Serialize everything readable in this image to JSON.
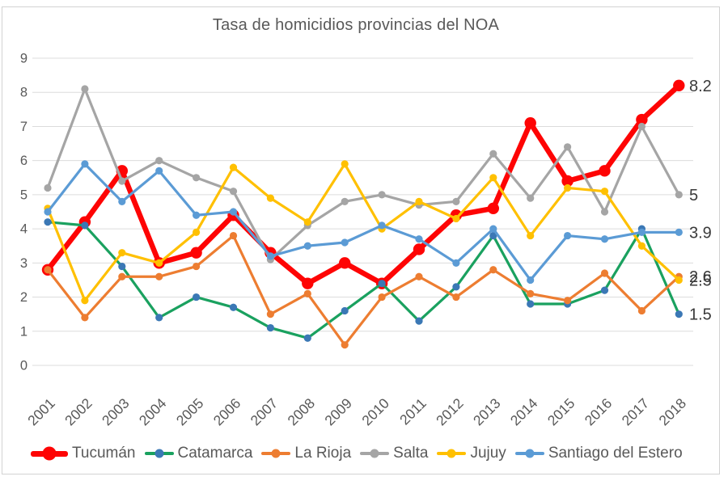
{
  "title": "Tasa de homicidios provincias del NOA",
  "axes": {
    "y_ticks": [
      0,
      1,
      2,
      3,
      4,
      5,
      6,
      7,
      8,
      9
    ],
    "x_ticks": [
      "2001",
      "2002",
      "2003",
      "2004",
      "2005",
      "2006",
      "2007",
      "2008",
      "2009",
      "2010",
      "2011",
      "2012",
      "2013",
      "2014",
      "2015",
      "2016",
      "2017",
      "2018"
    ],
    "label_color": "#595959",
    "gridline_color": "#dcdcdc"
  },
  "chart_data": {
    "type": "line",
    "title": "Tasa de homicidios provincias del NOA",
    "xlabel": "",
    "ylabel": "",
    "ylim": [
      0,
      9
    ],
    "grid": true,
    "legend_position": "bottom",
    "x": [
      2001,
      2002,
      2003,
      2004,
      2005,
      2006,
      2007,
      2008,
      2009,
      2010,
      2011,
      2012,
      2013,
      2014,
      2015,
      2016,
      2017,
      2018
    ],
    "series": [
      {
        "name": "Tucumán",
        "color": "#fe0404",
        "marker_color": "#fe0404",
        "emphasis": true,
        "end_label": "8.2",
        "values": [
          2.8,
          4.2,
          5.7,
          3.0,
          3.3,
          4.4,
          3.3,
          2.4,
          3.0,
          2.4,
          3.4,
          4.4,
          4.6,
          7.1,
          5.4,
          5.7,
          7.2,
          8.2
        ]
      },
      {
        "name": "Catamarca",
        "color": "#1aa15f",
        "marker_color": "#3b78b5",
        "emphasis": false,
        "end_label": "1.5",
        "values": [
          4.2,
          4.1,
          2.9,
          1.4,
          2.0,
          1.7,
          1.1,
          0.8,
          1.6,
          2.4,
          1.3,
          2.3,
          3.8,
          1.8,
          1.8,
          2.2,
          4.0,
          1.5
        ]
      },
      {
        "name": "La Rioja",
        "color": "#ed7d31",
        "marker_color": "#ed7d31",
        "emphasis": false,
        "end_label": "2.6",
        "values": [
          2.8,
          1.4,
          2.6,
          2.6,
          2.9,
          3.8,
          1.5,
          2.1,
          0.6,
          2.0,
          2.6,
          2.0,
          2.8,
          2.1,
          1.9,
          2.7,
          1.6,
          2.6
        ]
      },
      {
        "name": "Salta",
        "color": "#a5a5a5",
        "marker_color": "#a5a5a5",
        "emphasis": false,
        "end_label": "5",
        "values": [
          5.2,
          8.1,
          5.4,
          6.0,
          5.5,
          5.1,
          3.1,
          4.1,
          4.8,
          5.0,
          4.7,
          4.8,
          6.2,
          4.9,
          6.4,
          4.5,
          7.0,
          5.0
        ]
      },
      {
        "name": "Jujuy",
        "color": "#ffc000",
        "marker_color": "#ffc000",
        "emphasis": false,
        "end_label": "2.5",
        "values": [
          4.6,
          1.9,
          3.3,
          3.0,
          3.9,
          5.8,
          4.9,
          4.2,
          5.9,
          4.0,
          4.8,
          4.3,
          5.5,
          3.8,
          5.2,
          5.1,
          3.5,
          2.5
        ]
      },
      {
        "name": "Santiago del Estero",
        "color": "#5b9bd5",
        "marker_color": "#5b9bd5",
        "emphasis": false,
        "end_label": "3.9",
        "values": [
          4.5,
          5.9,
          4.8,
          5.7,
          4.4,
          4.5,
          3.2,
          3.5,
          3.6,
          4.1,
          3.7,
          3.0,
          4.0,
          2.5,
          3.8,
          3.7,
          3.9,
          3.9
        ]
      }
    ]
  }
}
